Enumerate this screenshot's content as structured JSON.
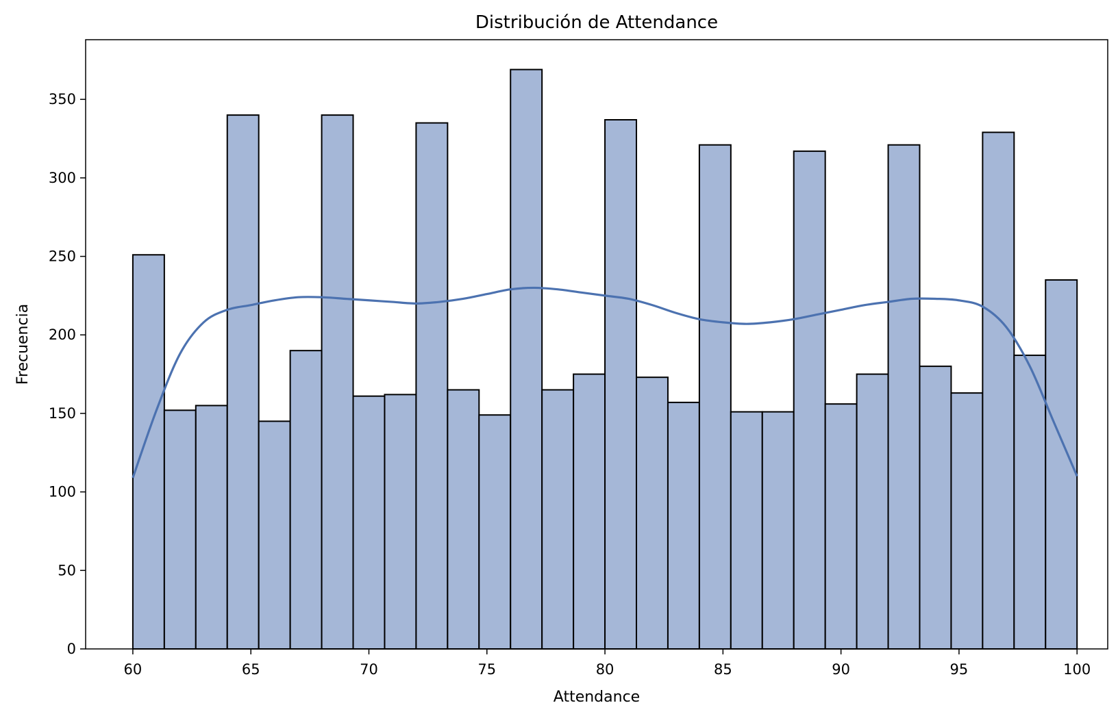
{
  "chart_data": {
    "type": "bar",
    "title": "Distribución de Attendance",
    "xlabel": "Attendance",
    "ylabel": "Frecuencia",
    "xlim": [
      58,
      101.3
    ],
    "ylim": [
      0,
      388
    ],
    "x_ticks": [
      60,
      65,
      70,
      75,
      80,
      85,
      90,
      95,
      100
    ],
    "y_ticks": [
      0,
      50,
      100,
      150,
      200,
      250,
      300,
      350
    ],
    "bin_start": 60,
    "bin_end": 100,
    "series": [
      {
        "type": "histogram",
        "values": [
          251,
          152,
          155,
          340,
          145,
          190,
          340,
          161,
          162,
          335,
          165,
          149,
          369,
          165,
          175,
          337,
          173,
          157,
          321,
          151,
          151,
          317,
          156,
          175,
          321,
          180,
          163,
          329,
          187,
          235
        ]
      },
      {
        "type": "kde",
        "x": [
          60,
          61,
          62,
          63,
          64,
          65,
          66,
          67,
          68,
          69,
          70,
          71,
          72,
          73,
          74,
          75,
          76,
          77,
          78,
          79,
          80,
          81,
          82,
          83,
          84,
          85,
          86,
          87,
          88,
          89,
          90,
          91,
          92,
          93,
          94,
          95,
          96,
          97,
          98,
          99,
          100
        ],
        "y": [
          109,
          152,
          188,
          208,
          216,
          219,
          222,
          224,
          224,
          223,
          222,
          221,
          220,
          221,
          223,
          226,
          229,
          230,
          229,
          227,
          225,
          223,
          219,
          214,
          210,
          208,
          207,
          208,
          210,
          213,
          216,
          219,
          221,
          223,
          223,
          222,
          218,
          205,
          180,
          145,
          110
        ]
      }
    ],
    "colors": {
      "bar_fill": "#a5b7d7",
      "bar_edge": "#000000",
      "kde_line": "#4c72b0"
    }
  }
}
